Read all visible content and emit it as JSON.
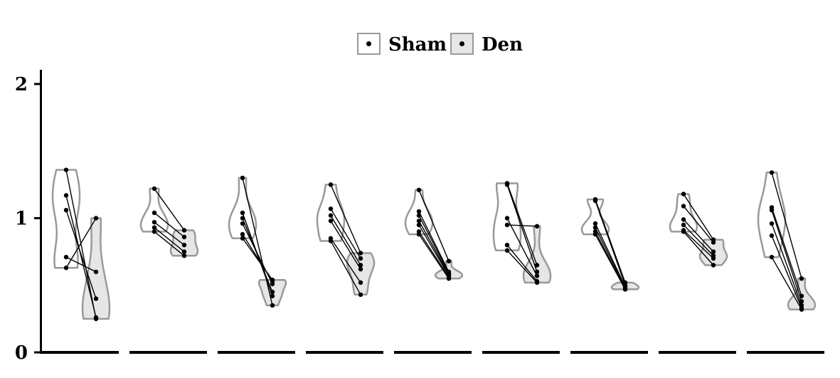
{
  "chart_data": {
    "type": "violin",
    "legend": {
      "placement": "top",
      "entries": [
        {
          "name": "Sham",
          "fill": "#ffffff"
        },
        {
          "name": "Den",
          "fill": "#e6e6e6"
        }
      ]
    },
    "ylim": [
      0,
      2
    ],
    "yticks": [
      {
        "value": 0,
        "label": "0"
      },
      {
        "value": 1,
        "label": "1"
      },
      {
        "value": 2,
        "label": "2"
      }
    ],
    "grid": false,
    "colors": {
      "outline": "#999999",
      "den_fill": "#e6e6e6",
      "points": "#000000",
      "axis": "#000000"
    },
    "groups": [
      {
        "pairs": [
          [
            1.36,
            0.25
          ],
          [
            1.17,
            0.26
          ],
          [
            1.06,
            0.4
          ],
          [
            0.71,
            0.6
          ],
          [
            0.63,
            1.0
          ]
        ]
      },
      {
        "pairs": [
          [
            1.22,
            0.91
          ],
          [
            1.04,
            0.86
          ],
          [
            0.97,
            0.8
          ],
          [
            0.93,
            0.75
          ],
          [
            0.9,
            0.72
          ]
        ]
      },
      {
        "pairs": [
          [
            1.3,
            0.35
          ],
          [
            1.04,
            0.42
          ],
          [
            1.0,
            0.45
          ],
          [
            0.96,
            0.51
          ],
          [
            0.88,
            0.53
          ],
          [
            0.85,
            0.54
          ]
        ]
      },
      {
        "pairs": [
          [
            1.25,
            0.74
          ],
          [
            1.07,
            0.7
          ],
          [
            1.02,
            0.65
          ],
          [
            0.98,
            0.62
          ],
          [
            0.85,
            0.52
          ],
          [
            0.83,
            0.43
          ]
        ]
      },
      {
        "pairs": [
          [
            1.21,
            0.68
          ],
          [
            1.05,
            0.6
          ],
          [
            1.02,
            0.59
          ],
          [
            0.98,
            0.58
          ],
          [
            0.95,
            0.57
          ],
          [
            0.9,
            0.56
          ],
          [
            0.88,
            0.55
          ]
        ]
      },
      {
        "pairs": [
          [
            1.26,
            0.65
          ],
          [
            1.25,
            0.6
          ],
          [
            1.0,
            0.57
          ],
          [
            0.95,
            0.94
          ],
          [
            0.8,
            0.53
          ],
          [
            0.76,
            0.52
          ]
        ]
      },
      {
        "pairs": [
          [
            1.14,
            0.52
          ],
          [
            1.13,
            0.5
          ],
          [
            0.96,
            0.49
          ],
          [
            0.93,
            0.48
          ],
          [
            0.9,
            0.47
          ],
          [
            0.88,
            0.47
          ]
        ]
      },
      {
        "pairs": [
          [
            1.18,
            0.84
          ],
          [
            1.09,
            0.82
          ],
          [
            0.99,
            0.75
          ],
          [
            0.95,
            0.72
          ],
          [
            0.91,
            0.7
          ],
          [
            0.9,
            0.65
          ]
        ]
      },
      {
        "pairs": [
          [
            1.34,
            0.55
          ],
          [
            1.08,
            0.42
          ],
          [
            1.06,
            0.38
          ],
          [
            0.96,
            0.35
          ],
          [
            0.87,
            0.33
          ],
          [
            0.71,
            0.32
          ]
        ]
      }
    ]
  }
}
